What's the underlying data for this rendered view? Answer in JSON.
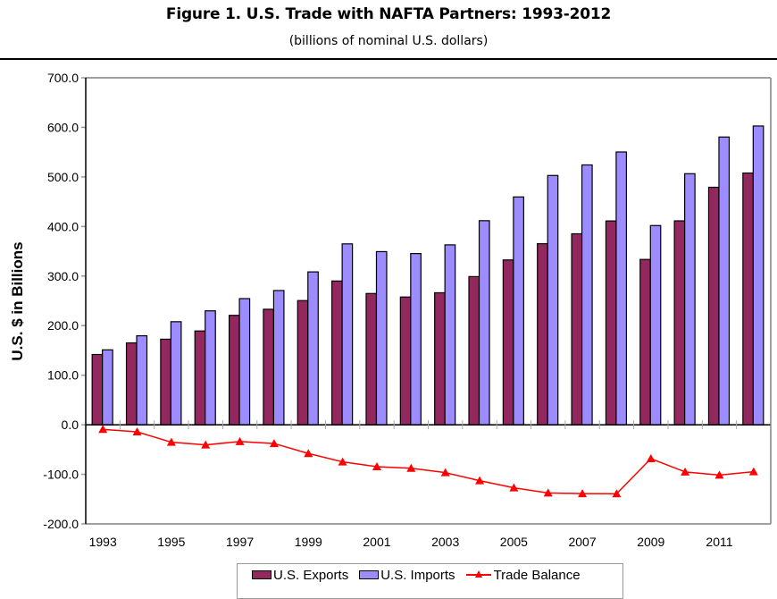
{
  "chart_data": {
    "type": "bar",
    "title": "Figure 1. U.S. Trade with NAFTA Partners: 1993-2012",
    "subtitle": "(billions of nominal U.S. dollars)",
    "xlabel": "",
    "ylabel": "U.S. $ in Billions",
    "ylim": [
      -200,
      700
    ],
    "yticks": [
      700,
      600,
      500,
      400,
      300,
      200,
      100,
      0,
      -100,
      -200
    ],
    "ytick_labels": [
      "700.0",
      "600.0",
      "500.0",
      "400.0",
      "300.0",
      "200.0",
      "100.0",
      "0.0",
      "-100.0",
      "-200.0"
    ],
    "categories": [
      "1993",
      "1994",
      "1995",
      "1996",
      "1997",
      "1998",
      "1999",
      "2000",
      "2001",
      "2002",
      "2003",
      "2004",
      "2005",
      "2006",
      "2007",
      "2008",
      "2009",
      "2010",
      "2011",
      "2012"
    ],
    "xtick_labels": [
      "1993",
      "",
      "1995",
      "",
      "1997",
      "",
      "1999",
      "",
      "2001",
      "",
      "2003",
      "",
      "2005",
      "",
      "2007",
      "",
      "2009",
      "",
      "2011",
      ""
    ],
    "grid": false,
    "legend_position": "bottom",
    "series": [
      {
        "name": "U.S. Exports",
        "kind": "bar",
        "color": "#93285e",
        "values": [
          141.8,
          165.2,
          172.6,
          189.2,
          220.7,
          233.0,
          250.5,
          290.0,
          264.8,
          257.7,
          266.3,
          298.9,
          332.5,
          365.3,
          385.3,
          411.2,
          333.5,
          411.4,
          479.1,
          507.9
        ]
      },
      {
        "name": "U.S. Imports",
        "kind": "bar",
        "color": "#9c8cff",
        "values": [
          151.1,
          179.5,
          207.9,
          229.8,
          254.5,
          270.8,
          308.4,
          364.9,
          349.3,
          345.4,
          362.9,
          411.7,
          459.6,
          502.9,
          524.2,
          550.3,
          401.9,
          506.5,
          580.5,
          602.7
        ]
      },
      {
        "name": "Trade Balance",
        "kind": "line",
        "marker": "triangle",
        "color": "#ff0000",
        "values": [
          -9.3,
          -14.3,
          -35.3,
          -40.6,
          -33.8,
          -37.8,
          -57.9,
          -74.9,
          -84.5,
          -87.7,
          -96.6,
          -112.8,
          -127.1,
          -137.6,
          -138.9,
          -139.1,
          -68.4,
          -95.1,
          -101.4,
          -94.8
        ]
      }
    ]
  },
  "legend": {
    "exports_label": "U.S. Exports",
    "imports_label": "U.S. Imports",
    "balance_label": "Trade Balance"
  }
}
